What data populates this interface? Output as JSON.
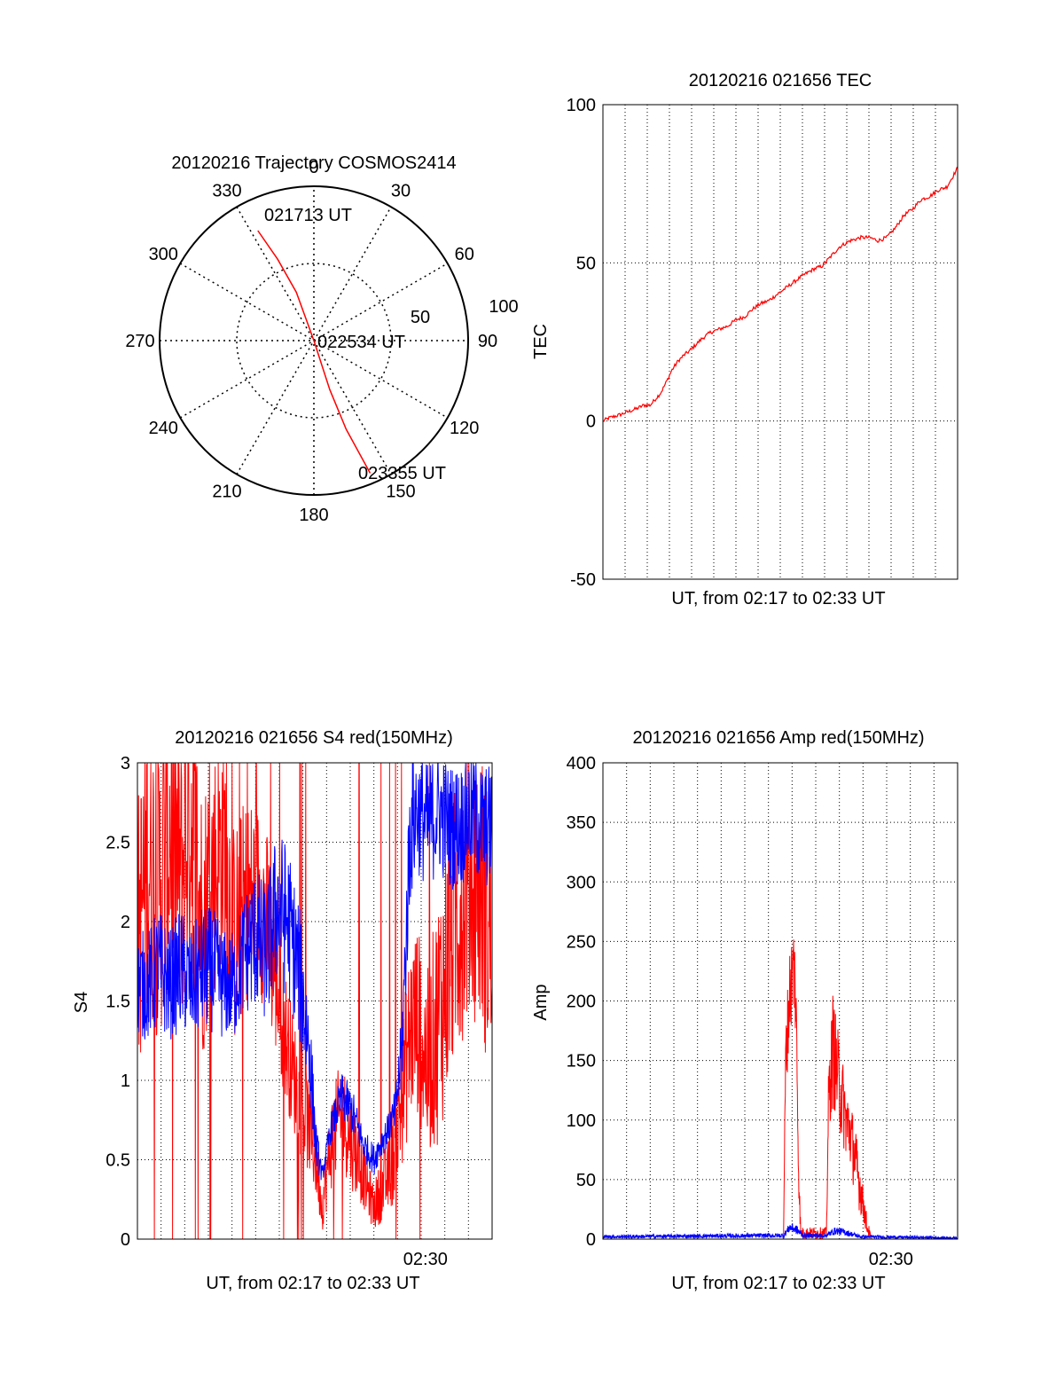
{
  "colors": {
    "red": "#ff0000",
    "blue": "#0000ff",
    "axis": "#000000",
    "grid": "#000000",
    "background": "#ffffff"
  },
  "chart_data": [
    {
      "type": "polar",
      "title": "20120216 Trajectory COSMOS2414",
      "angle_labels": [
        "0",
        "30",
        "60",
        "90",
        "120",
        "150",
        "180",
        "210",
        "240",
        "270",
        "300",
        "330"
      ],
      "radius_labels": [
        "50",
        "100"
      ],
      "trajectory": {
        "color": "red",
        "points": [
          {
            "az": 333,
            "el": 18
          },
          {
            "az": 336,
            "el": 38
          },
          {
            "az": 340,
            "el": 60
          },
          {
            "az": 0,
            "el": 90
          },
          {
            "az": 162,
            "el": 60
          },
          {
            "az": 160,
            "el": 35
          },
          {
            "az": 157,
            "el": 6
          }
        ]
      },
      "annotations": [
        "021713 UT",
        "022534 UT",
        "023355 UT"
      ]
    },
    {
      "type": "line",
      "title": "20120216 021656 TEC",
      "ylabel": "TEC",
      "xlabel": "UT, from 02:17 to 02:33 UT",
      "ylim": [
        -50,
        100
      ],
      "yticks": [
        "-50",
        "0",
        "50",
        "100"
      ],
      "xlim": [
        0,
        16.5
      ],
      "series": [
        {
          "color": "red",
          "x": [
            0,
            0.3,
            0.8,
            1.2,
            1.6,
            1.9,
            2.2,
            2.7,
            3.0,
            3.2,
            3.5,
            3.8,
            4.0,
            4.3,
            4.6,
            5.0,
            5.4,
            5.8,
            6.2,
            6.6,
            6.9,
            7.3,
            7.7,
            8.1,
            8.5,
            8.9,
            9.3,
            9.8,
            10.2,
            10.6,
            11.0,
            11.5,
            12.0,
            12.4,
            12.8,
            13.2,
            13.6,
            14.0,
            14.4,
            14.8,
            15.2,
            15.6,
            16.0,
            16.5
          ],
          "y": [
            0,
            1,
            2,
            3,
            4,
            5,
            5,
            9,
            13,
            16,
            19,
            21,
            22,
            24,
            26,
            28,
            29,
            30,
            32,
            33,
            35,
            37,
            38,
            40,
            42,
            44,
            46,
            48,
            49,
            52,
            55,
            57,
            58,
            58,
            57,
            58,
            61,
            65,
            67,
            70,
            71,
            73,
            74,
            80
          ]
        }
      ]
    },
    {
      "type": "line",
      "title": "20120216 021656 S4 red(150MHz)",
      "ylabel": "S4",
      "xlabel": "UT, from 02:17 to 02:33 UT",
      "ylim": [
        0,
        3
      ],
      "yticks": [
        "0",
        "0.5",
        "1",
        "1.5",
        "2",
        "2.5",
        "3"
      ],
      "xlim": [
        0,
        16.5
      ],
      "xtick_label": "02:30",
      "xtick_at": 13.4,
      "series": [
        {
          "color": "red",
          "x": [
            0,
            0.5,
            1,
            1.5,
            2,
            2.5,
            3,
            3.5,
            4,
            4.5,
            5,
            5.5,
            6,
            6.5,
            7,
            7.5,
            8,
            8.3,
            8.6,
            9,
            9.5,
            10,
            10.5,
            11,
            11.3,
            11.7,
            12,
            12.3,
            12.7,
            13,
            13.5,
            14,
            14.5,
            15,
            15.5,
            16,
            16.5
          ],
          "y": [
            1.9,
            2.4,
            2.2,
            2.6,
            2.3,
            2.7,
            2.0,
            2.3,
            2.5,
            1.9,
            2.1,
            2.2,
            2.0,
            1.6,
            1.2,
            0.9,
            0.7,
            0.5,
            0.2,
            0.6,
            0.8,
            0.6,
            0.4,
            0.2,
            0.3,
            0.4,
            0.6,
            0.9,
            1.3,
            1.4,
            1.1,
            1.4,
            1.8,
            2.1,
            2.3,
            2.2,
            1.8
          ],
          "amplitude": [
            0.9,
            1.0,
            1.0,
            1.0,
            1.0,
            1.0,
            0.9,
            0.8,
            0.8,
            0.7,
            0.7,
            0.6,
            0.6,
            0.5,
            0.4,
            0.35,
            0.3,
            0.25,
            0.15,
            0.3,
            0.35,
            0.3,
            0.2,
            0.15,
            0.2,
            0.25,
            0.35,
            0.45,
            0.6,
            0.6,
            0.6,
            0.8,
            0.9,
            0.9,
            0.9,
            0.9,
            0.9
          ]
        },
        {
          "color": "blue",
          "x": [
            0,
            0.5,
            1,
            1.5,
            2,
            2.5,
            3,
            3.5,
            4,
            4.5,
            5,
            5.5,
            6,
            6.5,
            7,
            7.5,
            8,
            8.3,
            8.6,
            9,
            9.5,
            10,
            10.5,
            11,
            11.3,
            11.7,
            12,
            12.3,
            12.7,
            13,
            13.5,
            14,
            14.5,
            15,
            15.5,
            16,
            16.5
          ],
          "y": [
            1.6,
            1.6,
            1.7,
            1.6,
            1.7,
            1.6,
            1.7,
            1.7,
            1.6,
            1.6,
            1.8,
            1.9,
            1.8,
            2.1,
            2.0,
            1.7,
            1.2,
            0.6,
            0.4,
            0.7,
            0.9,
            0.8,
            0.6,
            0.5,
            0.6,
            0.7,
            0.8,
            1.2,
            2.6,
            2.7,
            2.6,
            2.7,
            2.6,
            2.6,
            2.7,
            2.6,
            2.6
          ],
          "amplitude": [
            0.35,
            0.35,
            0.4,
            0.35,
            0.4,
            0.35,
            0.4,
            0.4,
            0.35,
            0.35,
            0.4,
            0.45,
            0.45,
            0.5,
            0.5,
            0.45,
            0.35,
            0.15,
            0.05,
            0.1,
            0.15,
            0.15,
            0.1,
            0.1,
            0.1,
            0.1,
            0.15,
            0.25,
            0.5,
            0.4,
            0.4,
            0.4,
            0.4,
            0.4,
            0.4,
            0.4,
            0.4
          ]
        }
      ]
    },
    {
      "type": "line",
      "title": "20120216 021656 Amp red(150MHz)",
      "ylabel": "Amp",
      "xlabel": "UT, from 02:17 to 02:33 UT",
      "ylim": [
        0,
        400
      ],
      "yticks": [
        "0",
        "50",
        "100",
        "150",
        "200",
        "250",
        "300",
        "350",
        "400"
      ],
      "xlim": [
        0,
        16.5
      ],
      "xtick_label": "02:30",
      "xtick_at": 13.4,
      "series": [
        {
          "color": "red",
          "x": [
            0,
            8.4,
            8.5,
            8.7,
            8.9,
            9.0,
            9.1,
            9.2,
            10.4,
            10.5,
            10.7,
            10.9,
            11.1,
            11.3,
            11.5,
            11.7,
            11.9,
            12.1,
            12.3,
            12.5,
            16.5
          ],
          "y": [
            0,
            0,
            150,
            210,
            230,
            180,
            60,
            5,
            5,
            120,
            160,
            140,
            120,
            100,
            90,
            70,
            50,
            30,
            10,
            0,
            0
          ],
          "amplitude": [
            0,
            0,
            30,
            40,
            40,
            30,
            20,
            5,
            5,
            30,
            50,
            40,
            40,
            30,
            30,
            30,
            25,
            15,
            8,
            0,
            0
          ]
        },
        {
          "color": "blue",
          "x": [
            0,
            8.4,
            8.7,
            9.0,
            9.3,
            10.4,
            10.8,
            11.2,
            11.6,
            12.0,
            16.5
          ],
          "y": [
            2,
            3,
            10,
            8,
            3,
            3,
            7,
            6,
            4,
            2,
            1
          ],
          "amplitude": [
            1.5,
            2,
            4,
            4,
            2,
            2,
            3,
            3,
            2,
            1.5,
            1
          ]
        }
      ]
    }
  ]
}
